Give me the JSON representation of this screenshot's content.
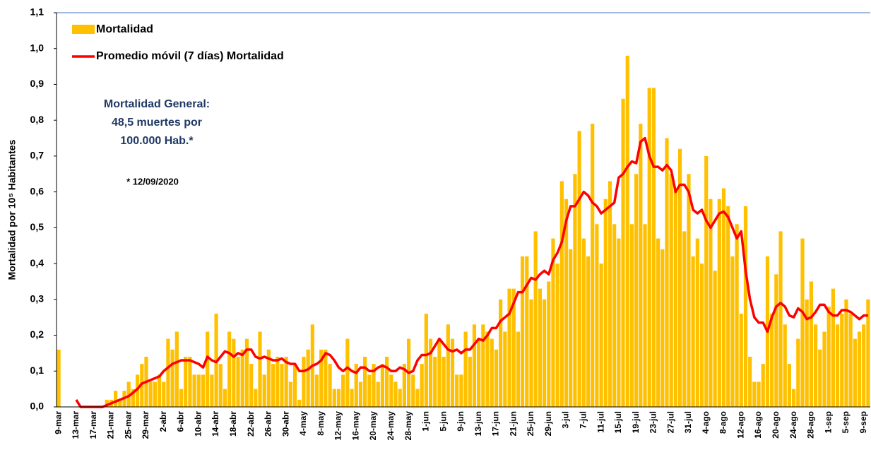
{
  "chart_data": {
    "type": "bar",
    "ylabel": "Mortalidad por 10⁵ Habitantes",
    "annotations": [
      "Mortalidad General:",
      "48,5 muertes por",
      "100.000 Hab.*",
      "* 12/09/2020"
    ],
    "legend": "upper left",
    "ylim": [
      0,
      1.1
    ],
    "yticks": [
      {
        "value": 0,
        "label": "0,0"
      },
      {
        "value": 0.1,
        "label": "0,1"
      },
      {
        "value": 0.2,
        "label": "0,2"
      },
      {
        "value": 0.3,
        "label": "0,3"
      },
      {
        "value": 0.4,
        "label": "0,4"
      },
      {
        "value": 0.5,
        "label": "0,5"
      },
      {
        "value": 0.6,
        "label": "0,6"
      },
      {
        "value": 0.7,
        "label": "0,7"
      },
      {
        "value": 0.8,
        "label": "0,8"
      },
      {
        "value": 0.9,
        "label": "0,9"
      },
      {
        "value": 1.0,
        "label": "1,0"
      },
      {
        "value": 1.1,
        "label": "1,1"
      }
    ],
    "categories": [
      "9-mar",
      null,
      null,
      null,
      "13-mar",
      null,
      null,
      null,
      "17-mar",
      null,
      null,
      null,
      "21-mar",
      null,
      null,
      null,
      "25-mar",
      null,
      null,
      null,
      "29-mar",
      null,
      null,
      null,
      "2-abr",
      null,
      null,
      null,
      "6-abr",
      null,
      null,
      null,
      "10-abr",
      null,
      null,
      null,
      "14-abr",
      null,
      null,
      null,
      "18-abr",
      null,
      null,
      null,
      "22-abr",
      null,
      null,
      null,
      "26-abr",
      null,
      null,
      null,
      "30-abr",
      null,
      null,
      null,
      "4-may",
      null,
      null,
      null,
      "8-may",
      null,
      null,
      null,
      "12-may",
      null,
      null,
      null,
      "16-may",
      null,
      null,
      null,
      "20-may",
      null,
      null,
      null,
      "24-may",
      null,
      null,
      null,
      "28-may",
      null,
      null,
      null,
      "1-jun",
      null,
      null,
      null,
      "5-jun",
      null,
      null,
      null,
      "9-jun",
      null,
      null,
      null,
      "13-jun",
      null,
      null,
      null,
      "17-jun",
      null,
      null,
      null,
      "21-jun",
      null,
      null,
      null,
      "25-jun",
      null,
      null,
      null,
      "29-jun",
      null,
      null,
      null,
      "3-jul",
      null,
      null,
      null,
      "7-jul",
      null,
      null,
      null,
      "11-jul",
      null,
      null,
      null,
      "15-jul",
      null,
      null,
      null,
      "19-jul",
      null,
      null,
      null,
      "23-jul",
      null,
      null,
      null,
      "27-jul",
      null,
      null,
      null,
      "31-jul",
      null,
      null,
      null,
      "4-ago",
      null,
      null,
      null,
      "8-ago",
      null,
      null,
      null,
      "12-ago",
      null,
      null,
      null,
      "16-ago",
      null,
      null,
      null,
      "20-ago",
      null,
      null,
      null,
      "24-ago",
      null,
      null,
      null,
      "28-ago",
      null,
      null,
      null,
      "1-sep",
      null,
      null,
      null,
      "5-sep",
      null,
      null,
      null,
      "9-sep",
      null
    ],
    "series": [
      {
        "name": "Mortalidad",
        "type": "bar",
        "color": "#FFC000",
        "values": [
          0.16,
          0,
          0,
          0,
          0,
          0,
          0,
          0,
          0,
          0,
          0,
          0.02,
          0.02,
          0.045,
          0.02,
          0.045,
          0.07,
          0.05,
          0.09,
          0.12,
          0.14,
          0.07,
          0.07,
          0.09,
          0.07,
          0.19,
          0.16,
          0.21,
          0.05,
          0.14,
          0.14,
          0.09,
          0.09,
          0.09,
          0.21,
          0.09,
          0.26,
          0.12,
          0.05,
          0.21,
          0.19,
          0.14,
          0.16,
          0.19,
          0.12,
          0.05,
          0.21,
          0.09,
          0.16,
          0.12,
          0.14,
          0.12,
          0.14,
          0.07,
          0.12,
          0.02,
          0.14,
          0.16,
          0.23,
          0.09,
          0.16,
          0.16,
          0.12,
          0.05,
          0.05,
          0.09,
          0.19,
          0.05,
          0.12,
          0.07,
          0.14,
          0.09,
          0.12,
          0.07,
          0.12,
          0.14,
          0.09,
          0.07,
          0.05,
          0.12,
          0.19,
          0.09,
          0.05,
          0.12,
          0.26,
          0.19,
          0.14,
          0.19,
          0.14,
          0.23,
          0.19,
          0.09,
          0.09,
          0.21,
          0.14,
          0.23,
          0.19,
          0.23,
          0.21,
          0.19,
          0.16,
          0.3,
          0.21,
          0.33,
          0.33,
          0.21,
          0.42,
          0.42,
          0.3,
          0.49,
          0.33,
          0.3,
          0.35,
          0.47,
          0.4,
          0.63,
          0.58,
          0.44,
          0.65,
          0.77,
          0.47,
          0.42,
          0.79,
          0.51,
          0.4,
          0.58,
          0.63,
          0.51,
          0.47,
          0.86,
          0.98,
          0.51,
          0.65,
          0.79,
          0.51,
          0.89,
          0.89,
          0.47,
          0.44,
          0.75,
          0.65,
          0.61,
          0.72,
          0.49,
          0.65,
          0.42,
          0.47,
          0.4,
          0.7,
          0.58,
          0.38,
          0.58,
          0.61,
          0.56,
          0.42,
          0.51,
          0.26,
          0.56,
          0.14,
          0.07,
          0.07,
          0.12,
          0.42,
          0.26,
          0.37,
          0.49,
          0.23,
          0.12,
          0.05,
          0.19,
          0.47,
          0.3,
          0.35,
          0.23,
          0.16,
          0.21,
          0.28,
          0.33,
          0.23,
          0.26,
          0.3,
          0.26,
          0.19,
          0.21,
          0.23,
          0.3
        ]
      },
      {
        "name": "Promedio móvil (7 días) Mortalidad",
        "type": "line",
        "color": "#FF0000",
        "values": [
          null,
          null,
          null,
          null,
          0.02,
          0,
          0,
          0,
          0,
          0,
          0,
          0.005,
          0.01,
          0.015,
          0.02,
          0.025,
          0.03,
          0.04,
          0.05,
          0.065,
          0.07,
          0.075,
          0.08,
          0.085,
          0.1,
          0.11,
          0.12,
          0.125,
          0.13,
          0.13,
          0.13,
          0.125,
          0.12,
          0.11,
          0.14,
          0.13,
          0.125,
          0.14,
          0.155,
          0.15,
          0.14,
          0.15,
          0.145,
          0.16,
          0.16,
          0.14,
          0.135,
          0.14,
          0.135,
          0.13,
          0.13,
          0.135,
          0.125,
          0.12,
          0.12,
          0.1,
          0.1,
          0.105,
          0.115,
          0.12,
          0.13,
          0.15,
          0.145,
          0.13,
          0.11,
          0.1,
          0.11,
          0.1,
          0.095,
          0.11,
          0.11,
          0.1,
          0.1,
          0.11,
          0.115,
          0.11,
          0.1,
          0.1,
          0.11,
          0.105,
          0.095,
          0.1,
          0.13,
          0.145,
          0.145,
          0.15,
          0.17,
          0.19,
          0.175,
          0.16,
          0.155,
          0.16,
          0.15,
          0.16,
          0.16,
          0.175,
          0.19,
          0.185,
          0.2,
          0.22,
          0.22,
          0.24,
          0.25,
          0.26,
          0.29,
          0.32,
          0.32,
          0.34,
          0.36,
          0.355,
          0.37,
          0.38,
          0.37,
          0.41,
          0.43,
          0.46,
          0.52,
          0.56,
          0.56,
          0.58,
          0.6,
          0.59,
          0.57,
          0.56,
          0.54,
          0.55,
          0.56,
          0.57,
          0.64,
          0.65,
          0.67,
          0.685,
          0.68,
          0.74,
          0.75,
          0.7,
          0.67,
          0.67,
          0.66,
          0.675,
          0.66,
          0.6,
          0.62,
          0.62,
          0.6,
          0.55,
          0.54,
          0.55,
          0.52,
          0.5,
          0.52,
          0.54,
          0.545,
          0.53,
          0.5,
          0.47,
          0.49,
          0.38,
          0.3,
          0.25,
          0.235,
          0.235,
          0.21,
          0.25,
          0.28,
          0.29,
          0.28,
          0.255,
          0.25,
          0.275,
          0.265,
          0.245,
          0.25,
          0.265,
          0.285,
          0.285,
          0.265,
          0.255,
          0.255,
          0.27,
          0.27,
          0.265,
          0.255,
          0.245,
          0.255,
          0.255
        ]
      }
    ]
  }
}
